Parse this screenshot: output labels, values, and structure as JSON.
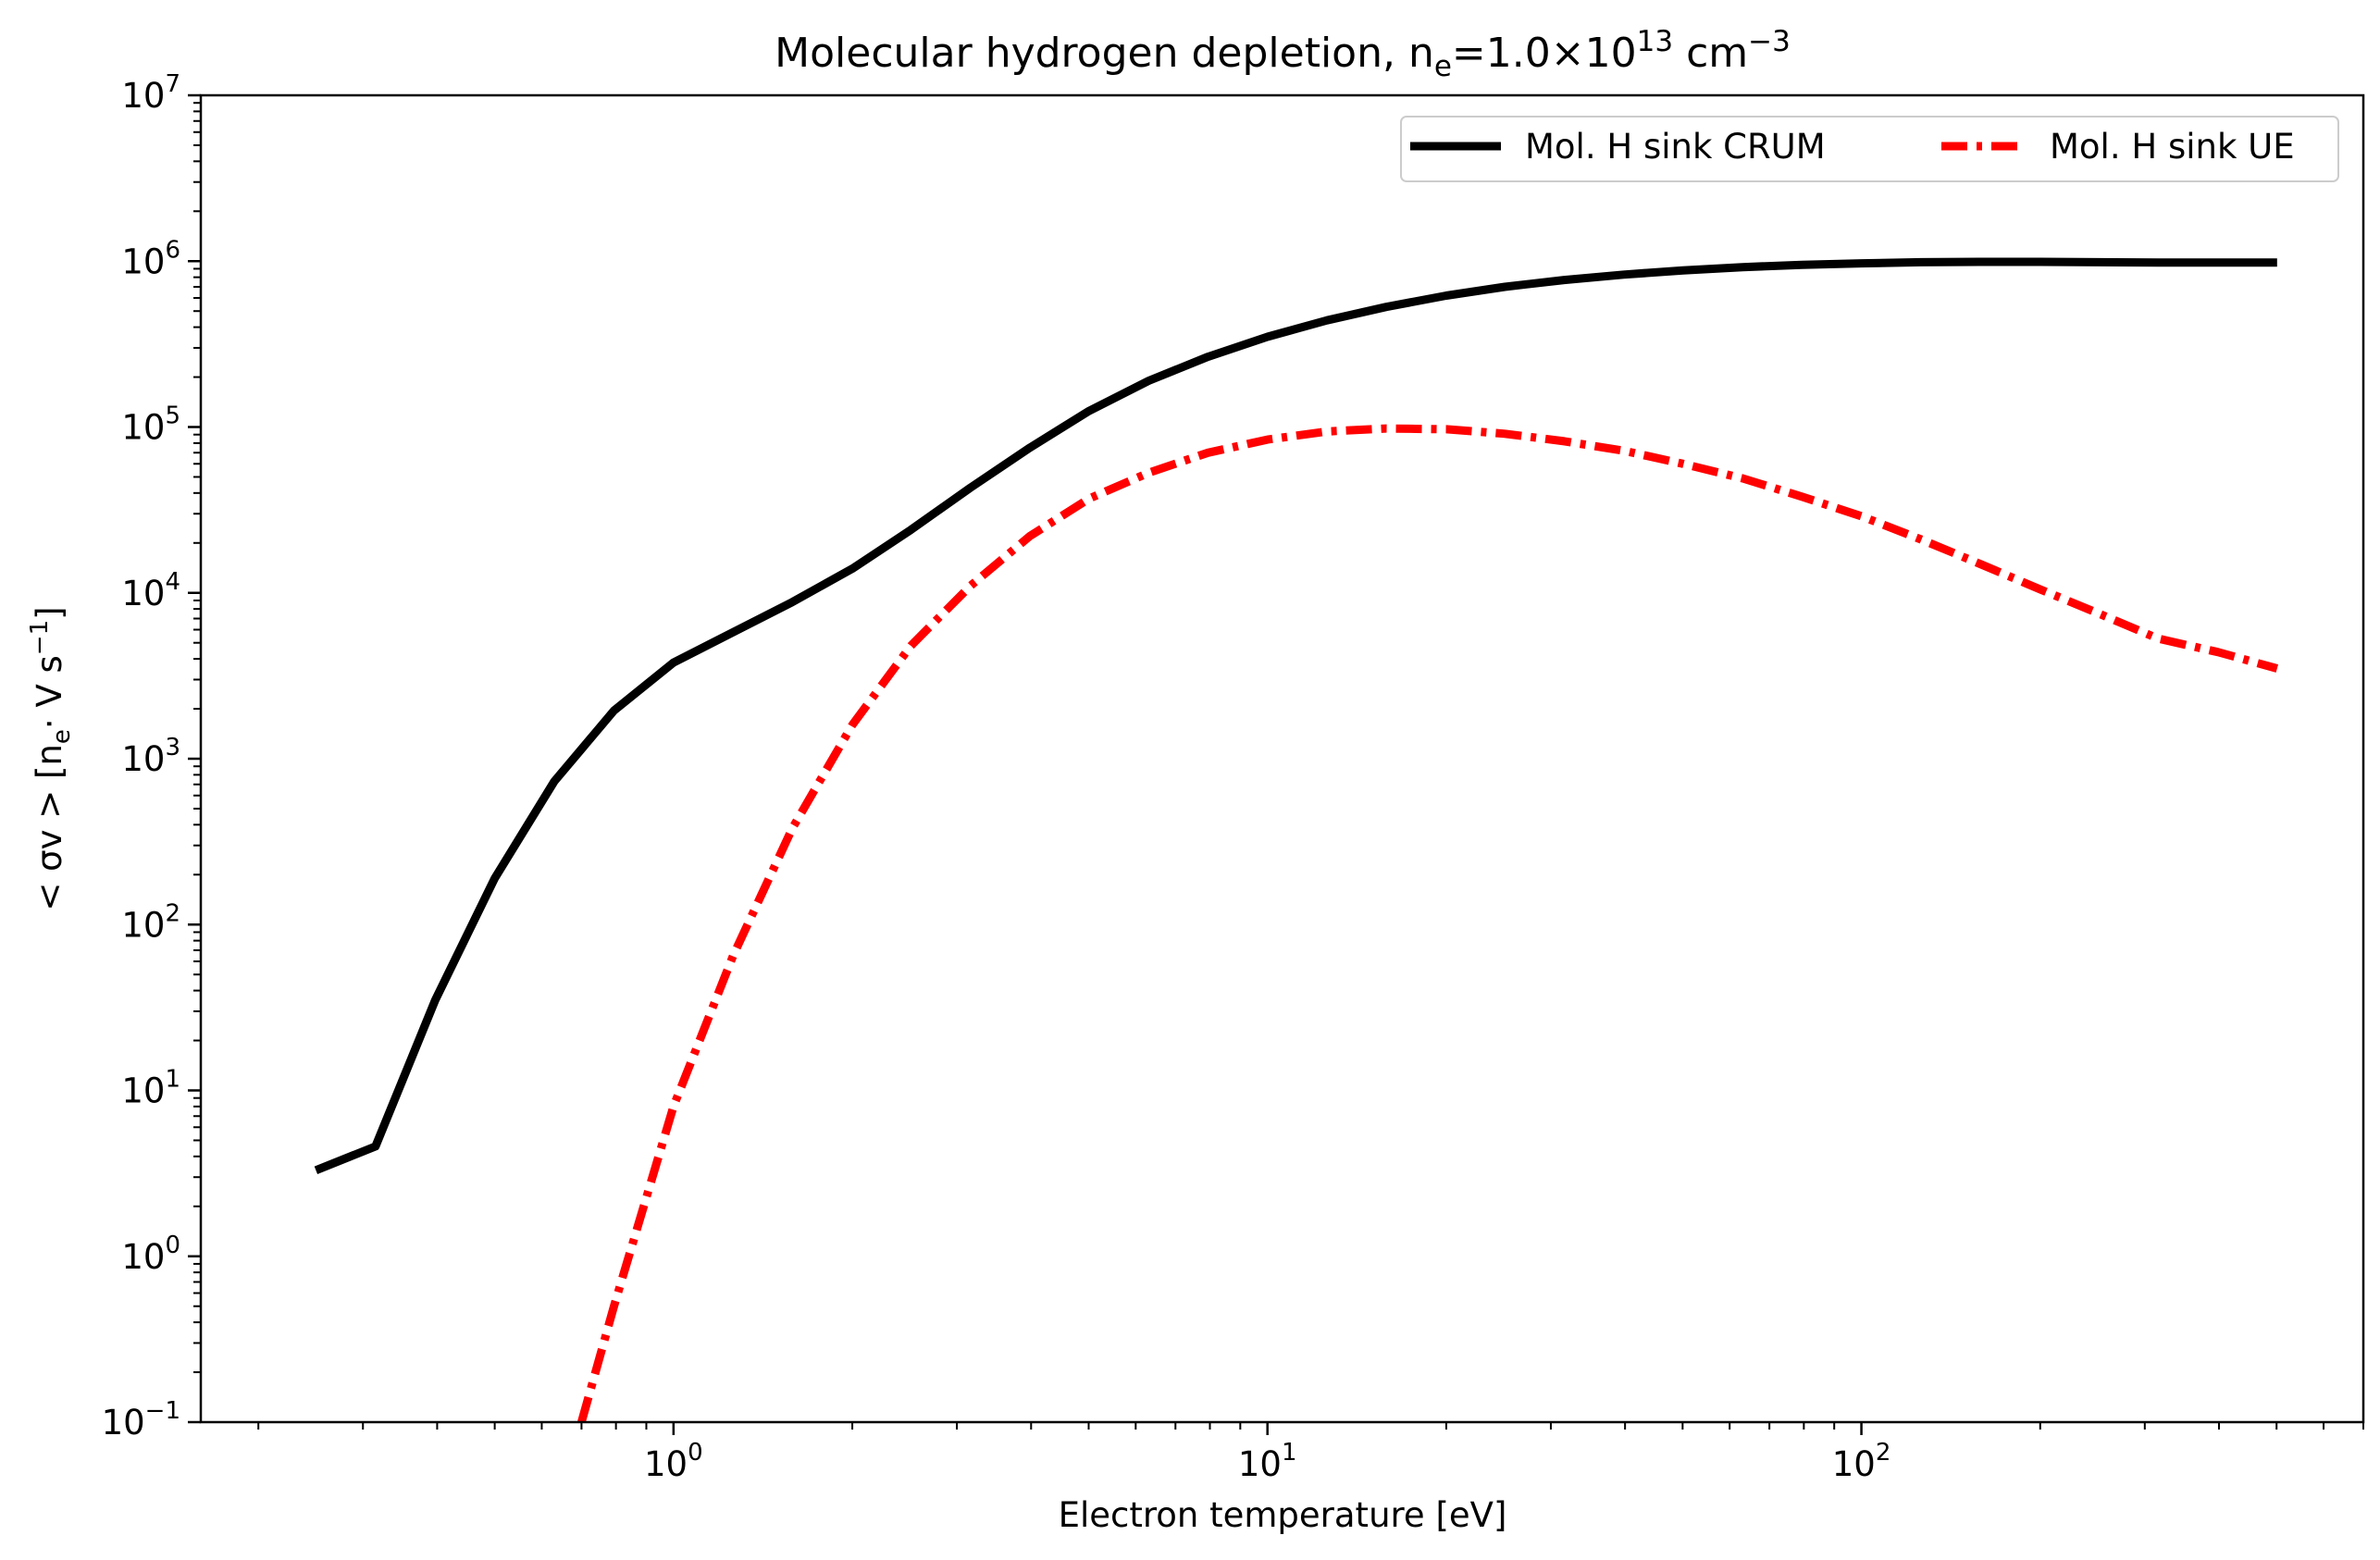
{
  "chart_data": {
    "type": "line",
    "title": {
      "text": "Molecular hydrogen depletion, n",
      "sub": "e",
      "mid": "=1.0×10",
      "sup": "13",
      "unit": " cm",
      "unit_sup": "−3"
    },
    "xlabel": "Electron temperature [eV]",
    "ylabel": {
      "prefix": "< σv >  [n",
      "sub": "e",
      "mid": "· V   s",
      "sup": "−1",
      "suffix": "]"
    },
    "x_scale": "log",
    "y_scale": "log",
    "xlim": [
      0.16,
      700
    ],
    "ylim": [
      0.1,
      10000000
    ],
    "x_ticks": [
      {
        "value": 1,
        "base": "10",
        "exp": "0"
      },
      {
        "value": 10,
        "base": "10",
        "exp": "1"
      },
      {
        "value": 100,
        "base": "10",
        "exp": "2"
      }
    ],
    "y_ticks": [
      {
        "value": 0.1,
        "base": "10",
        "exp": "−1"
      },
      {
        "value": 1,
        "base": "10",
        "exp": "0"
      },
      {
        "value": 10,
        "base": "10",
        "exp": "1"
      },
      {
        "value": 100,
        "base": "10",
        "exp": "2"
      },
      {
        "value": 1000,
        "base": "10",
        "exp": "3"
      },
      {
        "value": 10000,
        "base": "10",
        "exp": "4"
      },
      {
        "value": 100000,
        "base": "10",
        "exp": "5"
      },
      {
        "value": 1000000,
        "base": "10",
        "exp": "6"
      },
      {
        "value": 10000000,
        "base": "10",
        "exp": "7"
      }
    ],
    "grid": false,
    "legend": {
      "position": "top-right",
      "columns": 2
    },
    "series": [
      {
        "name": "Mol. H sink CRUM",
        "color": "#000000",
        "style": "solid",
        "points": [
          [
            0.25,
            3.3
          ],
          [
            0.315,
            4.6
          ],
          [
            0.397,
            35
          ],
          [
            0.5,
            190
          ],
          [
            0.63,
            730
          ],
          [
            0.794,
            1950
          ],
          [
            1.0,
            3800
          ],
          [
            1.26,
            5800
          ],
          [
            1.585,
            8800
          ],
          [
            2.0,
            14000
          ],
          [
            2.51,
            24000
          ],
          [
            3.16,
            43000
          ],
          [
            3.98,
            75000
          ],
          [
            5.01,
            125000
          ],
          [
            6.31,
            190000
          ],
          [
            7.94,
            265000
          ],
          [
            10.0,
            350000
          ],
          [
            12.6,
            440000
          ],
          [
            15.85,
            530000
          ],
          [
            20.0,
            620000
          ],
          [
            25.1,
            700000
          ],
          [
            31.6,
            770000
          ],
          [
            39.8,
            830000
          ],
          [
            50.1,
            880000
          ],
          [
            63.1,
            920000
          ],
          [
            79.4,
            950000
          ],
          [
            100,
            970000
          ],
          [
            126,
            985000
          ],
          [
            158,
            990000
          ],
          [
            200,
            990000
          ],
          [
            251,
            985000
          ],
          [
            316,
            980000
          ],
          [
            398,
            980000
          ],
          [
            501,
            980000
          ]
        ]
      },
      {
        "name": "Mol. H sink UE",
        "color": "#ff0000",
        "style": "dashdot",
        "points": [
          [
            0.7,
            0.1
          ],
          [
            0.794,
            0.5
          ],
          [
            1.0,
            8
          ],
          [
            1.26,
            65
          ],
          [
            1.585,
            380
          ],
          [
            2.0,
            1600
          ],
          [
            2.51,
            4800
          ],
          [
            3.16,
            11000
          ],
          [
            3.98,
            22000
          ],
          [
            5.01,
            37000
          ],
          [
            6.31,
            53000
          ],
          [
            7.94,
            70000
          ],
          [
            10.0,
            84000
          ],
          [
            12.6,
            94000
          ],
          [
            15.85,
            98000
          ],
          [
            20.0,
            97000
          ],
          [
            25.1,
            91000
          ],
          [
            31.6,
            82000
          ],
          [
            39.8,
            72000
          ],
          [
            50.1,
            60000
          ],
          [
            63.1,
            49000
          ],
          [
            79.4,
            38000
          ],
          [
            100,
            29000
          ],
          [
            126,
            21000
          ],
          [
            158,
            15000
          ],
          [
            200,
            10500
          ],
          [
            251,
            7500
          ],
          [
            316,
            5300
          ],
          [
            398,
            4400
          ],
          [
            501,
            3500
          ]
        ]
      }
    ]
  }
}
